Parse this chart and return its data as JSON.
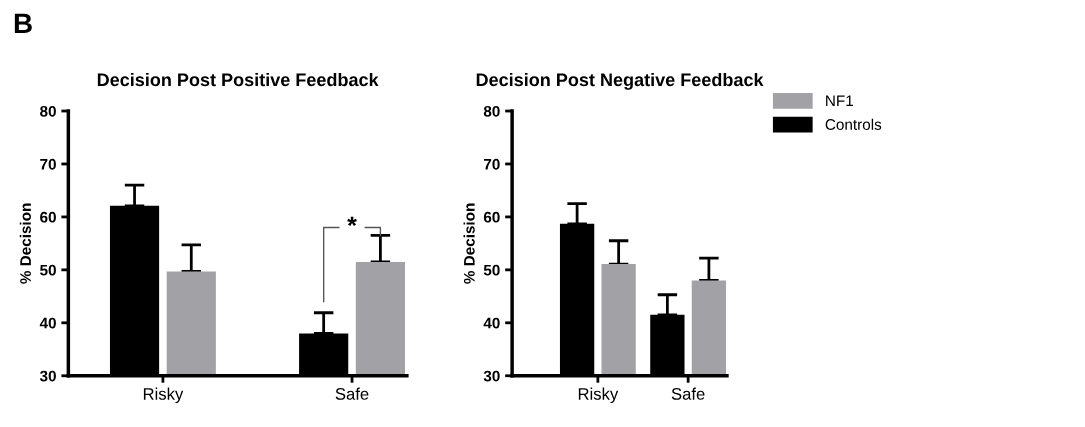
{
  "chart_data": [
    {
      "type": "bar",
      "title": "Decision Post Positive Feedback",
      "ylabel": "% Decision",
      "categories": [
        "Risky",
        "Safe"
      ],
      "ylim": [
        30,
        80
      ],
      "yticks": [
        30,
        40,
        50,
        60,
        70,
        80
      ],
      "grid": false,
      "series": [
        {
          "color": "#000000",
          "values": [
            62.1,
            38.0
          ],
          "errors": [
            [
              62.1,
              66.0
            ],
            [
              38.0,
              41.9
            ]
          ]
        },
        {
          "color": "#a2a2a6",
          "values": [
            49.7,
            51.5
          ],
          "errors": [
            [
              49.7,
              54.7
            ],
            [
              51.5,
              56.5
            ]
          ]
        }
      ],
      "annotations": [
        "B",
        "*"
      ]
    },
    {
      "type": "bar",
      "title": "Decision Post Negative Feedback",
      "ylabel": "% Decision",
      "categories": [
        "Risky",
        "Safe"
      ],
      "ylim": [
        30,
        80
      ],
      "yticks": [
        30,
        40,
        50,
        60,
        70,
        80
      ],
      "grid": false,
      "legend": "right",
      "series": [
        {
          "name": "Controls",
          "color": "#000000",
          "values": [
            58.7,
            41.5
          ],
          "errors": [
            [
              58.7,
              62.5
            ],
            [
              41.5,
              45.3
            ]
          ]
        },
        {
          "name": "NF1",
          "color": "#a2a2a6",
          "values": [
            51.1,
            48.0
          ],
          "errors": [
            [
              51.1,
              55.5
            ],
            [
              48.0,
              52.2
            ]
          ]
        }
      ]
    }
  ]
}
